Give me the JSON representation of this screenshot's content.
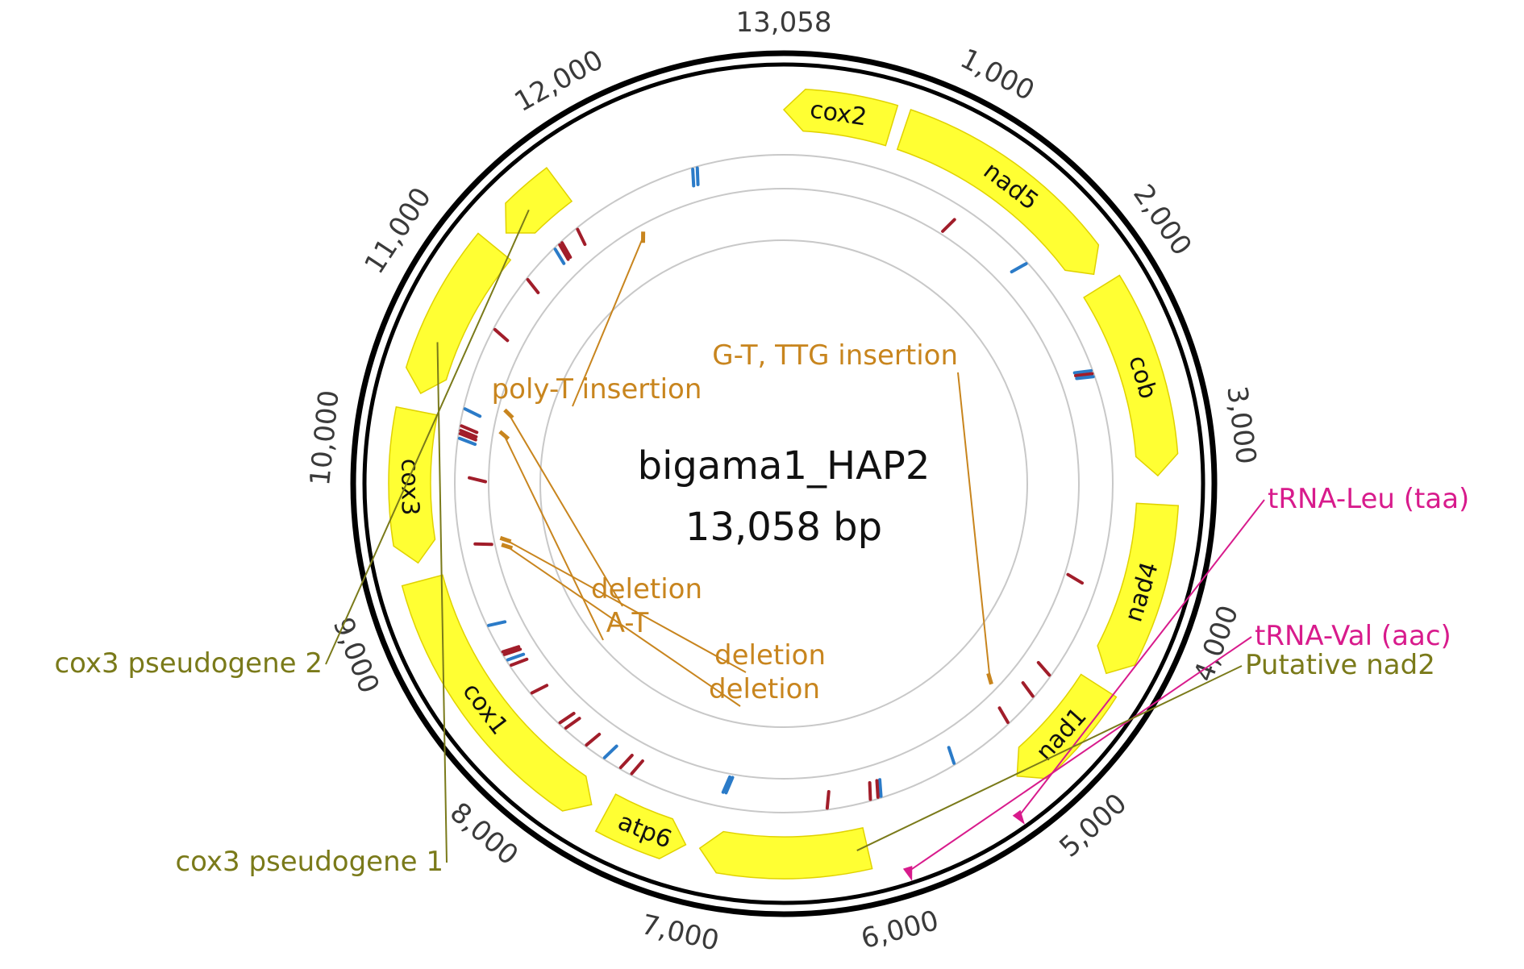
{
  "map": {
    "name": "bigama1_HAP2",
    "length_label": "13,058 bp",
    "total_bp": 13058,
    "colors": {
      "backbone": "#000000",
      "gene_fill": "#ffff33",
      "gene_stroke": "#e0d200",
      "track_ring": "#c8c8c8",
      "variant_label": "#c8851e",
      "trna": "#d81b8c",
      "misc_label": "#7a7a1a",
      "snp_red": "#a11d2a",
      "snp_blue": "#2b7bc8"
    }
  },
  "ticks": [
    {
      "pos": 13058,
      "label": "13,058"
    },
    {
      "pos": 1000,
      "label": "1,000"
    },
    {
      "pos": 2000,
      "label": "2,000"
    },
    {
      "pos": 3000,
      "label": "3,000"
    },
    {
      "pos": 4000,
      "label": "4,000"
    },
    {
      "pos": 5000,
      "label": "5,000"
    },
    {
      "pos": 6000,
      "label": "6,000"
    },
    {
      "pos": 7000,
      "label": "7,000"
    },
    {
      "pos": 8000,
      "label": "8,000"
    },
    {
      "pos": 9000,
      "label": "9,000"
    },
    {
      "pos": 10000,
      "label": "10,000"
    },
    {
      "pos": 11000,
      "label": "11,000"
    },
    {
      "pos": 12000,
      "label": "12,000"
    }
  ],
  "genes": [
    {
      "name": "cox2",
      "start": 13058,
      "end": 608,
      "strand": -1
    },
    {
      "name": "nad5",
      "start": 680,
      "end": 2030,
      "strand": 1
    },
    {
      "name": "cob",
      "start": 2110,
      "end": 3220,
      "strand": 1
    },
    {
      "name": "nad4",
      "start": 3380,
      "end": 4370,
      "strand": 1
    },
    {
      "name": "nad1",
      "start": 4450,
      "end": 5130,
      "strand": 1
    },
    {
      "name": "",
      "start": 6060,
      "end": 7000,
      "strand": 1
    },
    {
      "name": "atp6",
      "start": 7080,
      "end": 7560,
      "strand": -1
    },
    {
      "name": "cox1",
      "start": 7650,
      "end": 9250,
      "strand": -1
    },
    {
      "name": "cox3",
      "start": 9350,
      "end": 10200,
      "strand": -1
    },
    {
      "name": "",
      "start": 10300,
      "end": 11220,
      "strand": -1
    },
    {
      "name": "",
      "start": 11320,
      "end": 11720,
      "strand": -1
    }
  ],
  "features": [
    {
      "label": "tRNA-Leu (taa)",
      "pos": 5250,
      "kind": "trna"
    },
    {
      "label": "tRNA-Val (aac)",
      "pos": 5880,
      "kind": "trna"
    },
    {
      "label": "Putative nad2",
      "pos": 6120,
      "kind": "misc"
    },
    {
      "label": "cox3 pseudogene 2",
      "pos": 11500,
      "kind": "misc"
    },
    {
      "label": "cox3 pseudogene 1",
      "pos": 10600,
      "kind": "misc"
    }
  ],
  "variants": [
    {
      "label": "G-T, TTG insertion",
      "pos": 4840
    },
    {
      "label": "poly-T insertion",
      "pos": 11980
    },
    {
      "label": "deletion",
      "pos": 10310
    },
    {
      "label": "A-T",
      "pos": 10150
    },
    {
      "label": "deletion",
      "pos": 9380
    },
    {
      "label": "deletion",
      "pos": 9330
    }
  ],
  "snps": [
    {
      "pos": 1720,
      "c": "b",
      "t": 0
    },
    {
      "pos": 2520,
      "c": "b",
      "t": 0
    },
    {
      "pos": 2540,
      "c": "r",
      "t": 0
    },
    {
      "pos": 2560,
      "c": "b",
      "t": 0
    },
    {
      "pos": 1180,
      "c": "r",
      "t": 1
    },
    {
      "pos": 3920,
      "c": "r",
      "t": 1
    },
    {
      "pos": 4550,
      "c": "r",
      "t": 0
    },
    {
      "pos": 4720,
      "c": "r",
      "t": 0
    },
    {
      "pos": 4950,
      "c": "r",
      "t": 0
    },
    {
      "pos": 5380,
      "c": "b",
      "t": 0
    },
    {
      "pos": 5890,
      "c": "b",
      "t": 0
    },
    {
      "pos": 5910,
      "c": "r",
      "t": 0
    },
    {
      "pos": 5960,
      "c": "r",
      "t": 0
    },
    {
      "pos": 6240,
      "c": "r",
      "t": 0
    },
    {
      "pos": 6900,
      "c": "b",
      "t": 1
    },
    {
      "pos": 6920,
      "c": "b",
      "t": 1
    },
    {
      "pos": 7520,
      "c": "r",
      "t": 0
    },
    {
      "pos": 7600,
      "c": "r",
      "t": 0
    },
    {
      "pos": 7720,
      "c": "b",
      "t": 0
    },
    {
      "pos": 7860,
      "c": "r",
      "t": 0
    },
    {
      "pos": 8030,
      "c": "r",
      "t": 0
    },
    {
      "pos": 8080,
      "c": "r",
      "t": 0
    },
    {
      "pos": 8340,
      "c": "r",
      "t": 0
    },
    {
      "pos": 8560,
      "c": "r",
      "t": 0
    },
    {
      "pos": 8600,
      "c": "b",
      "t": 0
    },
    {
      "pos": 8640,
      "c": "r",
      "t": 0
    },
    {
      "pos": 8660,
      "c": "r",
      "t": 0
    },
    {
      "pos": 8850,
      "c": "b",
      "t": 0
    },
    {
      "pos": 9380,
      "c": "r",
      "t": 1
    },
    {
      "pos": 9820,
      "c": "r",
      "t": 1
    },
    {
      "pos": 10070,
      "c": "b",
      "t": 0
    },
    {
      "pos": 10100,
      "c": "r",
      "t": 0
    },
    {
      "pos": 10120,
      "c": "r",
      "t": 0
    },
    {
      "pos": 10150,
      "c": "r",
      "t": 0
    },
    {
      "pos": 10260,
      "c": "b",
      "t": 0
    },
    {
      "pos": 10800,
      "c": "r",
      "t": 0
    },
    {
      "pos": 11180,
      "c": "r",
      "t": 0
    },
    {
      "pos": 11440,
      "c": "b",
      "t": 0
    },
    {
      "pos": 11480,
      "c": "r",
      "t": 0
    },
    {
      "pos": 11500,
      "c": "r",
      "t": 0
    },
    {
      "pos": 11630,
      "c": "r",
      "t": 0
    },
    {
      "pos": 12460,
      "c": "b",
      "t": 0
    },
    {
      "pos": 12490,
      "c": "b",
      "t": 0
    }
  ]
}
